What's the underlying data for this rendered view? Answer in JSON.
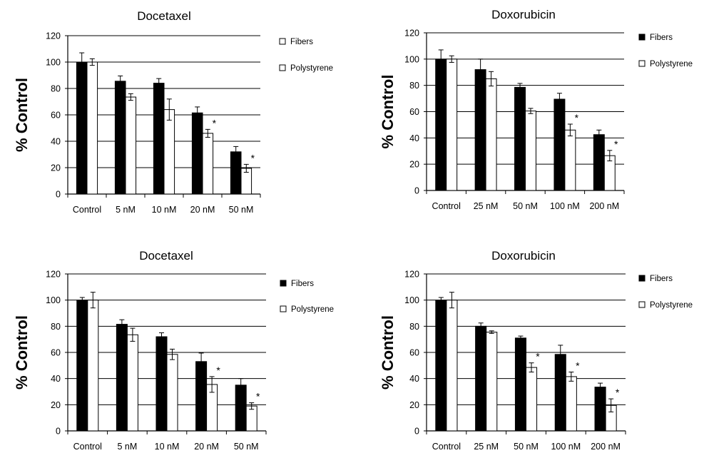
{
  "chart_data": [
    {
      "type": "bar",
      "title": "Docetaxel",
      "ylabel": "% Control",
      "ylim": [
        0,
        120
      ],
      "yticks": [
        "0",
        "20",
        "40",
        "60",
        "80",
        "100",
        "120"
      ],
      "categories": [
        "Control",
        "5 nM",
        "10 nM",
        "20 nM",
        "50 nM"
      ],
      "grid": true,
      "legend_position": "right",
      "legend_fill_first": false,
      "series": [
        {
          "name": "Fibers",
          "color": "#000000",
          "values": [
            100,
            85.5,
            84,
            61.5,
            32
          ],
          "errors": [
            7,
            4,
            3.5,
            4.5,
            4
          ]
        },
        {
          "name": "Polystyrene",
          "color": "#ffffff",
          "values": [
            100,
            73.5,
            64,
            46,
            19.5
          ],
          "errors": [
            2.5,
            2.5,
            8,
            3,
            3
          ]
        }
      ],
      "annotations": [
        {
          "label": "*",
          "category": 3,
          "series": 1
        },
        {
          "label": "*",
          "category": 4,
          "series": 1
        }
      ]
    },
    {
      "type": "bar",
      "title": "Doxorubicin",
      "ylabel": "% Control",
      "ylim": [
        0,
        120
      ],
      "yticks": [
        "0",
        "20",
        "40",
        "60",
        "80",
        "100",
        "120"
      ],
      "categories": [
        "Control",
        "25 nM",
        "50 nM",
        "100 nM",
        "200 nM"
      ],
      "grid": true,
      "legend_position": "right",
      "legend_fill_first": true,
      "series": [
        {
          "name": "Fibers",
          "color": "#000000",
          "values": [
            100,
            92,
            78.5,
            69.5,
            42.5
          ],
          "errors": [
            7,
            8,
            3,
            4.5,
            3.5
          ]
        },
        {
          "name": "Polystyrene",
          "color": "#ffffff",
          "values": [
            100,
            85,
            60.5,
            46,
            26.5
          ],
          "errors": [
            2.5,
            5.5,
            2,
            4.5,
            4
          ]
        }
      ],
      "annotations": [
        {
          "label": "*",
          "category": 3,
          "series": 1
        },
        {
          "label": "*",
          "category": 4,
          "series": 1
        }
      ]
    },
    {
      "type": "bar",
      "title": "Docetaxel",
      "ylabel": "% Control",
      "ylim": [
        0,
        120
      ],
      "yticks": [
        "0",
        "20",
        "40",
        "60",
        "80",
        "100",
        "120"
      ],
      "categories": [
        "Control",
        "5 nM",
        "10 nM",
        "20 nM",
        "50 nM"
      ],
      "grid": true,
      "legend_position": "right",
      "legend_fill_first": true,
      "series": [
        {
          "name": "Fibers",
          "color": "#000000",
          "values": [
            100,
            81.5,
            72,
            53,
            35
          ],
          "errors": [
            2,
            3.5,
            3,
            6.5,
            5
          ]
        },
        {
          "name": "Polystyrene",
          "color": "#ffffff",
          "values": [
            100,
            73.5,
            58.5,
            35.5,
            19
          ],
          "errors": [
            6,
            5,
            4,
            6,
            2.5
          ]
        }
      ],
      "annotations": [
        {
          "label": "*",
          "category": 3,
          "series": 1
        },
        {
          "label": "*",
          "category": 4,
          "series": 1
        }
      ]
    },
    {
      "type": "bar",
      "title": "Doxorubicin",
      "ylabel": "% Control",
      "ylim": [
        0,
        120
      ],
      "yticks": [
        "0",
        "20",
        "40",
        "60",
        "80",
        "100",
        "120"
      ],
      "categories": [
        "Control",
        "25 nM",
        "50 nM",
        "100 nM",
        "200 nM"
      ],
      "grid": true,
      "legend_position": "right",
      "legend_fill_first": true,
      "series": [
        {
          "name": "Fibers",
          "color": "#000000",
          "values": [
            100,
            80,
            71,
            58.5,
            33.5
          ],
          "errors": [
            2,
            2.5,
            1.5,
            7,
            3
          ]
        },
        {
          "name": "Polystyrene",
          "color": "#ffffff",
          "values": [
            100,
            75.5,
            48.5,
            41.5,
            19.5
          ],
          "errors": [
            6,
            1,
            3.5,
            3.5,
            5
          ]
        }
      ],
      "annotations": [
        {
          "label": "*",
          "category": 2,
          "series": 1
        },
        {
          "label": "*",
          "category": 3,
          "series": 1
        },
        {
          "label": "*",
          "category": 4,
          "series": 1
        }
      ]
    }
  ]
}
